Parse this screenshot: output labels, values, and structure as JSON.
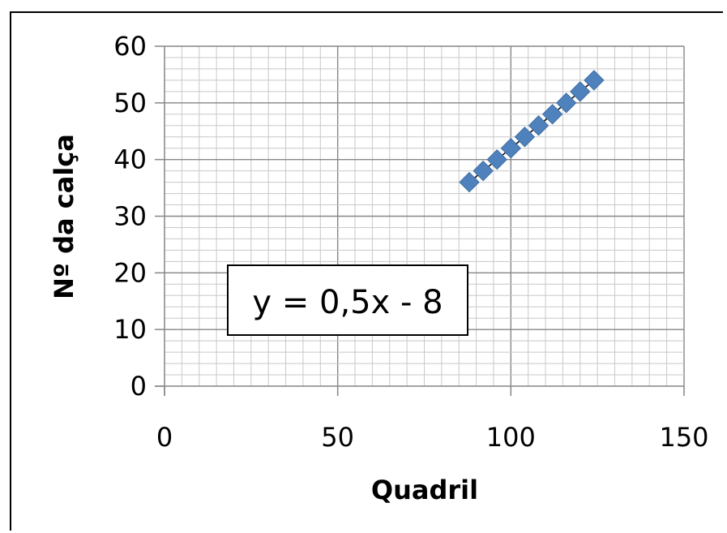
{
  "chart_data": {
    "type": "scatter",
    "xlabel": "Quadril",
    "ylabel": "Nº da calça",
    "xlim": [
      0,
      150
    ],
    "ylim": [
      0,
      60
    ],
    "x_ticks": [
      0,
      50,
      100,
      150
    ],
    "y_ticks": [
      0,
      10,
      20,
      30,
      40,
      50,
      60
    ],
    "x_minor_step": 5,
    "y_minor_step": 2,
    "grid": true,
    "legend": "none",
    "marker": "diamond",
    "marker_color": "#4F81BD",
    "trendline": {
      "equation": "y = 0,5x - 8",
      "slope": 0.5,
      "intercept": -8,
      "color": "#000000"
    },
    "series": [
      {
        "x": [
          88,
          92,
          96,
          100,
          104,
          108,
          112,
          116,
          120,
          124
        ],
        "y": [
          36,
          38,
          40,
          42,
          44,
          46,
          48,
          50,
          52,
          54
        ]
      }
    ]
  }
}
